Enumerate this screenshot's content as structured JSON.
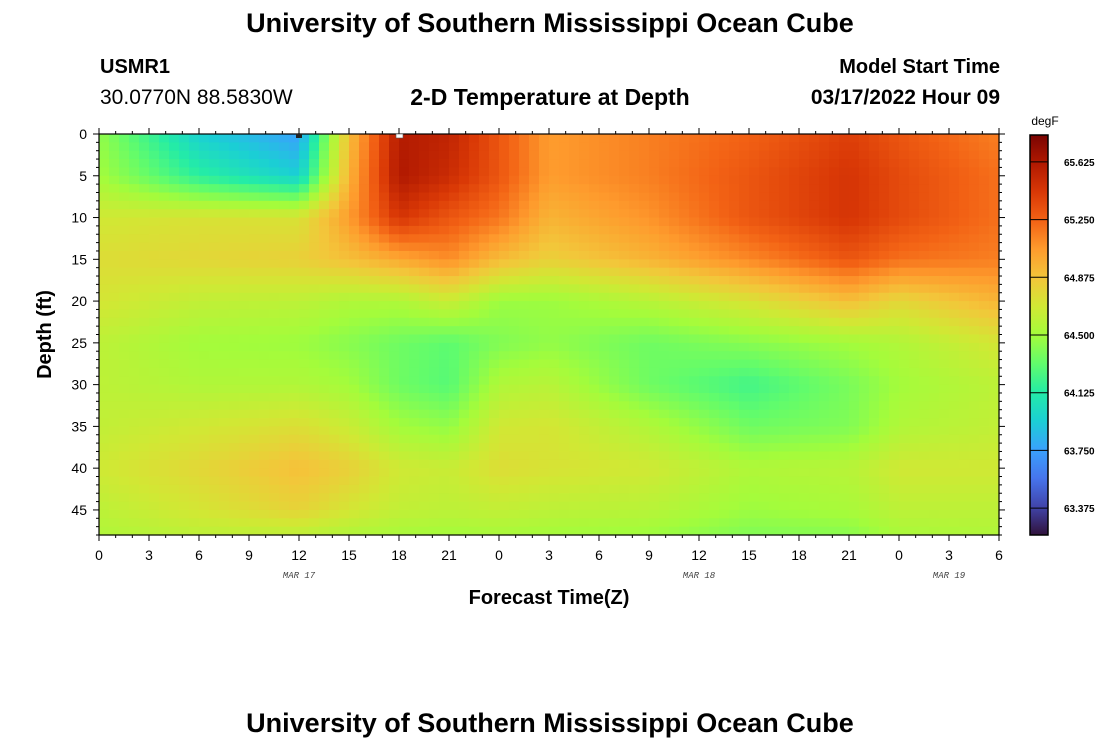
{
  "header": {
    "title": "University of Southern Mississippi Ocean Cube",
    "station_id": "USMR1",
    "station_coords": "30.0770N  88.5830W",
    "plot_subtitle": "2-D Temperature at Depth",
    "model_label": "Model Start Time",
    "model_time": "03/17/2022 Hour 09"
  },
  "footer": {
    "title": "University of Southern Mississippi Ocean Cube"
  },
  "chart_data": {
    "type": "heatmap",
    "title": "2-D Temperature at Depth",
    "xlabel": "Forecast Time(Z)",
    "ylabel": "Depth (ft)",
    "x_tick_labels": [
      "0",
      "3",
      "6",
      "9",
      "12",
      "15",
      "18",
      "21",
      "0",
      "3",
      "6",
      "9",
      "12",
      "15",
      "18",
      "21",
      "0",
      "3",
      "6"
    ],
    "x_hours_range": [
      0,
      54
    ],
    "date_labels": [
      {
        "hour": 12,
        "label": "MAR 17"
      },
      {
        "hour": 36,
        "label": "MAR 18"
      },
      {
        "hour": 51,
        "label": "MAR 19"
      }
    ],
    "y_tick_labels": [
      "0",
      "5",
      "10",
      "15",
      "20",
      "25",
      "30",
      "35",
      "40",
      "45"
    ],
    "y_range": [
      0,
      48
    ],
    "colorbar": {
      "unit": "degF",
      "range": [
        63.2,
        65.8
      ],
      "ticks": [
        "65.625",
        "65.250",
        "64.875",
        "64.500",
        "64.125",
        "63.750",
        "63.375"
      ],
      "colors": [
        "#30123b",
        "#4145ab",
        "#4675ed",
        "#39a2fc",
        "#1bcfd4",
        "#24eca6",
        "#61fc6c",
        "#a4fc3b",
        "#d1e834",
        "#f3c63a",
        "#fe9b2d",
        "#f36315",
        "#d93806",
        "#b11901",
        "#7a0402"
      ]
    },
    "grid_profile_temperatures": {
      "depths_ft": [
        0,
        5,
        10,
        15,
        20,
        25,
        30,
        35,
        40,
        45,
        48
      ],
      "profiles": [
        {
          "hour": 0,
          "values": [
            64.45,
            64.5,
            64.68,
            64.75,
            64.7,
            64.6,
            64.6,
            64.62,
            64.68,
            64.6,
            64.55
          ]
        },
        {
          "hour": 6,
          "values": [
            63.95,
            64.15,
            64.72,
            64.78,
            64.62,
            64.5,
            64.55,
            64.68,
            64.78,
            64.7,
            64.6
          ]
        },
        {
          "hour": 12,
          "values": [
            63.75,
            63.95,
            64.72,
            64.82,
            64.6,
            64.48,
            64.55,
            64.74,
            64.9,
            64.8,
            64.6
          ]
        },
        {
          "hour": 15,
          "values": [
            64.9,
            64.95,
            65.05,
            64.9,
            64.55,
            64.42,
            64.5,
            64.65,
            64.82,
            64.7,
            64.55
          ]
        },
        {
          "hour": 18,
          "values": [
            65.6,
            65.62,
            65.45,
            65.0,
            64.55,
            64.35,
            64.35,
            64.5,
            64.68,
            64.62,
            64.52
          ]
        },
        {
          "hour": 21,
          "values": [
            65.55,
            65.5,
            65.3,
            65.1,
            64.65,
            64.3,
            64.28,
            64.45,
            64.65,
            64.6,
            64.5
          ]
        },
        {
          "hour": 24,
          "values": [
            65.3,
            65.3,
            65.18,
            64.92,
            64.48,
            64.4,
            64.55,
            64.68,
            64.75,
            64.62,
            64.52
          ]
        },
        {
          "hour": 27,
          "values": [
            65.05,
            65.05,
            64.95,
            64.82,
            64.48,
            64.45,
            64.58,
            64.7,
            64.72,
            64.6,
            64.5
          ]
        },
        {
          "hour": 33,
          "values": [
            65.15,
            65.15,
            65.08,
            64.95,
            64.58,
            64.35,
            64.35,
            64.55,
            64.68,
            64.58,
            64.48
          ]
        },
        {
          "hour": 39,
          "values": [
            65.25,
            65.3,
            65.3,
            65.12,
            64.72,
            64.42,
            64.22,
            64.35,
            64.55,
            64.48,
            64.4
          ]
        },
        {
          "hour": 45,
          "values": [
            65.4,
            65.45,
            65.45,
            65.3,
            64.9,
            64.5,
            64.38,
            64.4,
            64.58,
            64.52,
            64.42
          ]
        },
        {
          "hour": 48,
          "values": [
            65.3,
            65.35,
            65.35,
            65.2,
            64.78,
            64.55,
            64.5,
            64.55,
            64.68,
            64.6,
            64.52
          ]
        },
        {
          "hour": 54,
          "values": [
            65.15,
            65.2,
            65.2,
            65.15,
            64.95,
            64.7,
            64.6,
            64.62,
            64.68,
            64.6,
            64.55
          ]
        }
      ]
    }
  }
}
